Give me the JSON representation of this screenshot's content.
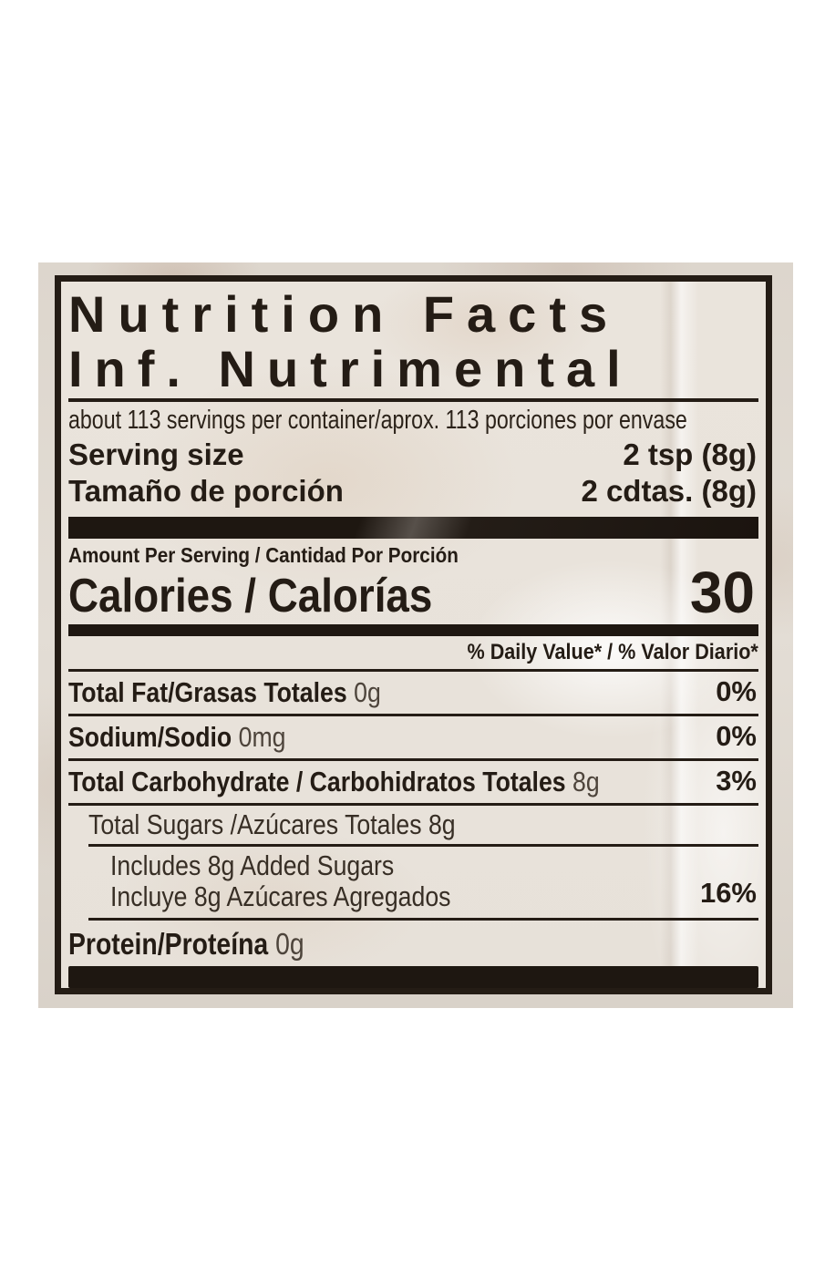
{
  "panel": {
    "title_en": "Nutrition Facts",
    "title_es": "Inf. Nutrimental",
    "servings_line": "about 113 servings per container/aprox. 113 porciones por envase",
    "serving_size": {
      "label_en": "Serving size",
      "value_en": "2 tsp (8g)",
      "label_es": "Tamaño de porción",
      "value_es": "2 cdtas. (8g)"
    },
    "amount_per_serving": "Amount Per Serving / Cantidad Por Porción",
    "calories": {
      "label": "Calories / Calorías",
      "value": "30"
    },
    "daily_value_header": "% Daily Value* / % Valor Diario*",
    "rows": {
      "total_fat": {
        "name": "Total Fat/Grasas Totales",
        "amount": "0g",
        "dv": "0%"
      },
      "sodium": {
        "name": "Sodium/Sodio",
        "amount": "0mg",
        "dv": "0%"
      },
      "total_carb": {
        "name": "Total Carbohydrate / Carbohidratos Totales",
        "amount": "8g",
        "dv": "3%"
      },
      "total_sugars": {
        "name": "Total Sugars /Azúcares Totales",
        "amount": "8g"
      },
      "added_sugars": {
        "line_en": "Includes 8g Added Sugars",
        "line_es": "Incluye 8g Azúcares Agregados",
        "dv": "16%"
      },
      "protein": {
        "name": "Protein/Proteína",
        "amount": "0g"
      }
    },
    "colors": {
      "ink": "#241c15",
      "label_bg": "#e9e3da"
    }
  }
}
